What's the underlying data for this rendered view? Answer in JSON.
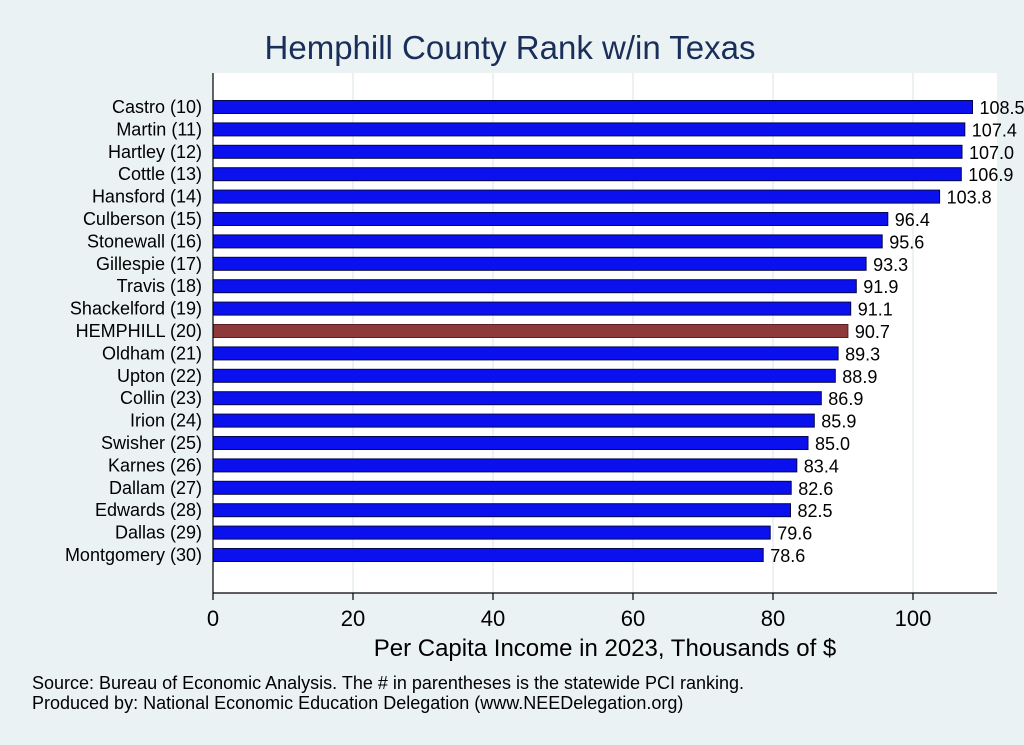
{
  "chart_data": {
    "type": "bar",
    "orientation": "horizontal",
    "title": "Hemphill County Rank w/in Texas",
    "xlabel": "Per Capita Income in 2023, Thousands of $",
    "ylabel": "",
    "xlim": [
      0,
      112
    ],
    "xticks": [
      0,
      20,
      40,
      60,
      80,
      100
    ],
    "grid": true,
    "categories": [
      "Castro (10)",
      "Martin (11)",
      "Hartley (12)",
      "Cottle (13)",
      "Hansford (14)",
      "Culberson (15)",
      "Stonewall (16)",
      "Gillespie (17)",
      "Travis (18)",
      "Shackelford (19)",
      "HEMPHILL (20)",
      "Oldham (21)",
      "Upton (22)",
      "Collin (23)",
      "Irion (24)",
      "Swisher (25)",
      "Karnes (26)",
      "Dallam (27)",
      "Edwards (28)",
      "Dallas (29)",
      "Montgomery (30)"
    ],
    "values": [
      108.5,
      107.4,
      107.0,
      106.9,
      103.8,
      96.4,
      95.6,
      93.3,
      91.9,
      91.1,
      90.7,
      89.3,
      88.9,
      86.9,
      85.9,
      85.0,
      83.4,
      82.6,
      82.5,
      79.6,
      78.6
    ],
    "value_labels": [
      "108.5",
      "107.4",
      "107.0",
      "106.9",
      "103.8",
      "96.4",
      "95.6",
      "93.3",
      "91.9",
      "91.1",
      "90.7",
      "89.3",
      "88.9",
      "86.9",
      "85.9",
      "85.0",
      "83.4",
      "82.6",
      "82.5",
      "79.6",
      "78.6"
    ],
    "highlight_index": 10,
    "colors": {
      "bar": "#0a10ee",
      "bar_outline": "#05074a",
      "highlight": "#8f3a3a",
      "highlight_outline": "#5a2020",
      "plot_background": "#ffffff",
      "page_background": "#eaf2f3",
      "grid": "#e6eeee",
      "title": "#1a2e5a"
    }
  },
  "notes": {
    "source": "Source: Bureau of Economic Analysis. The # in parentheses is the statewide PCI ranking.",
    "produced_by": "Produced by: National Economic Education Delegation (www.NEEDelegation.org)"
  }
}
